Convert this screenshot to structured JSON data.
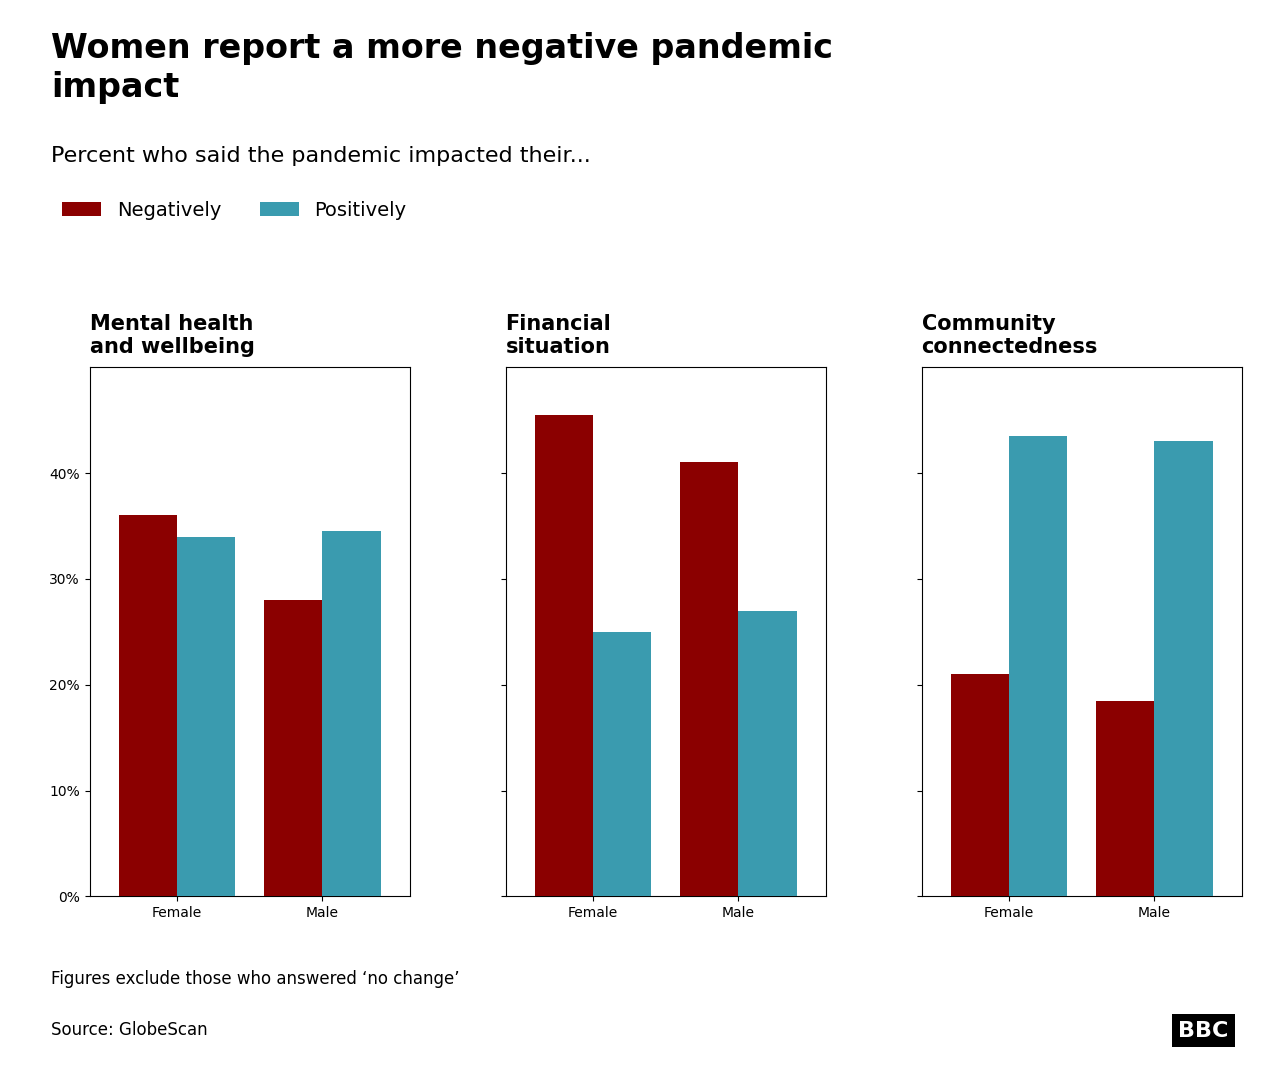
{
  "title": "Women report a more negative pandemic\nimpact",
  "subtitle": "Percent who said the pandemic impacted their...",
  "legend": "upper left",
  "annotations": [
    "Figures exclude those who answered ‘no change’",
    "Source: GlobeScan",
    "BBC"
  ],
  "chart_data": [
    {
      "type": "bar",
      "title": "Mental health\nand wellbeing",
      "categories": [
        "Female",
        "Male"
      ],
      "series": [
        {
          "name": "Negatively",
          "color": "#8B0000",
          "values": [
            36.0,
            28.0
          ]
        },
        {
          "name": "Positively",
          "color": "#3A9BAF",
          "values": [
            34.0,
            34.5
          ]
        }
      ],
      "ylim": [
        0,
        50
      ],
      "yticks": [
        {
          "value": 0,
          "label": "0%"
        },
        {
          "value": 10,
          "label": "10%"
        },
        {
          "value": 20,
          "label": "20%"
        },
        {
          "value": 30,
          "label": "30%"
        },
        {
          "value": 40,
          "label": "40%"
        }
      ],
      "grid": false
    },
    {
      "type": "bar",
      "title": "Financial\nsituation",
      "categories": [
        "Female",
        "Male"
      ],
      "series": [
        {
          "name": "Negatively",
          "color": "#8B0000",
          "values": [
            45.5,
            41.0
          ]
        },
        {
          "name": "Positively",
          "color": "#3A9BAF",
          "values": [
            25.0,
            27.0
          ]
        }
      ],
      "ylim": [
        0,
        50
      ],
      "yticks": [
        0,
        10,
        20,
        30,
        40
      ],
      "tick_labels": "x",
      "grid": false
    },
    {
      "type": "bar",
      "title": "Community\nconnectedness",
      "categories": [
        "Female",
        "Male"
      ],
      "series": [
        {
          "name": "Negatively",
          "color": "#8B0000",
          "values": [
            21.0,
            18.5
          ]
        },
        {
          "name": "Positively",
          "color": "#3A9BAF",
          "values": [
            43.5,
            43.0
          ]
        }
      ],
      "ylim": [
        0,
        50
      ],
      "yticks": [
        0,
        10,
        20,
        30,
        40
      ],
      "tick_labels": "x",
      "grid": false
    }
  ]
}
